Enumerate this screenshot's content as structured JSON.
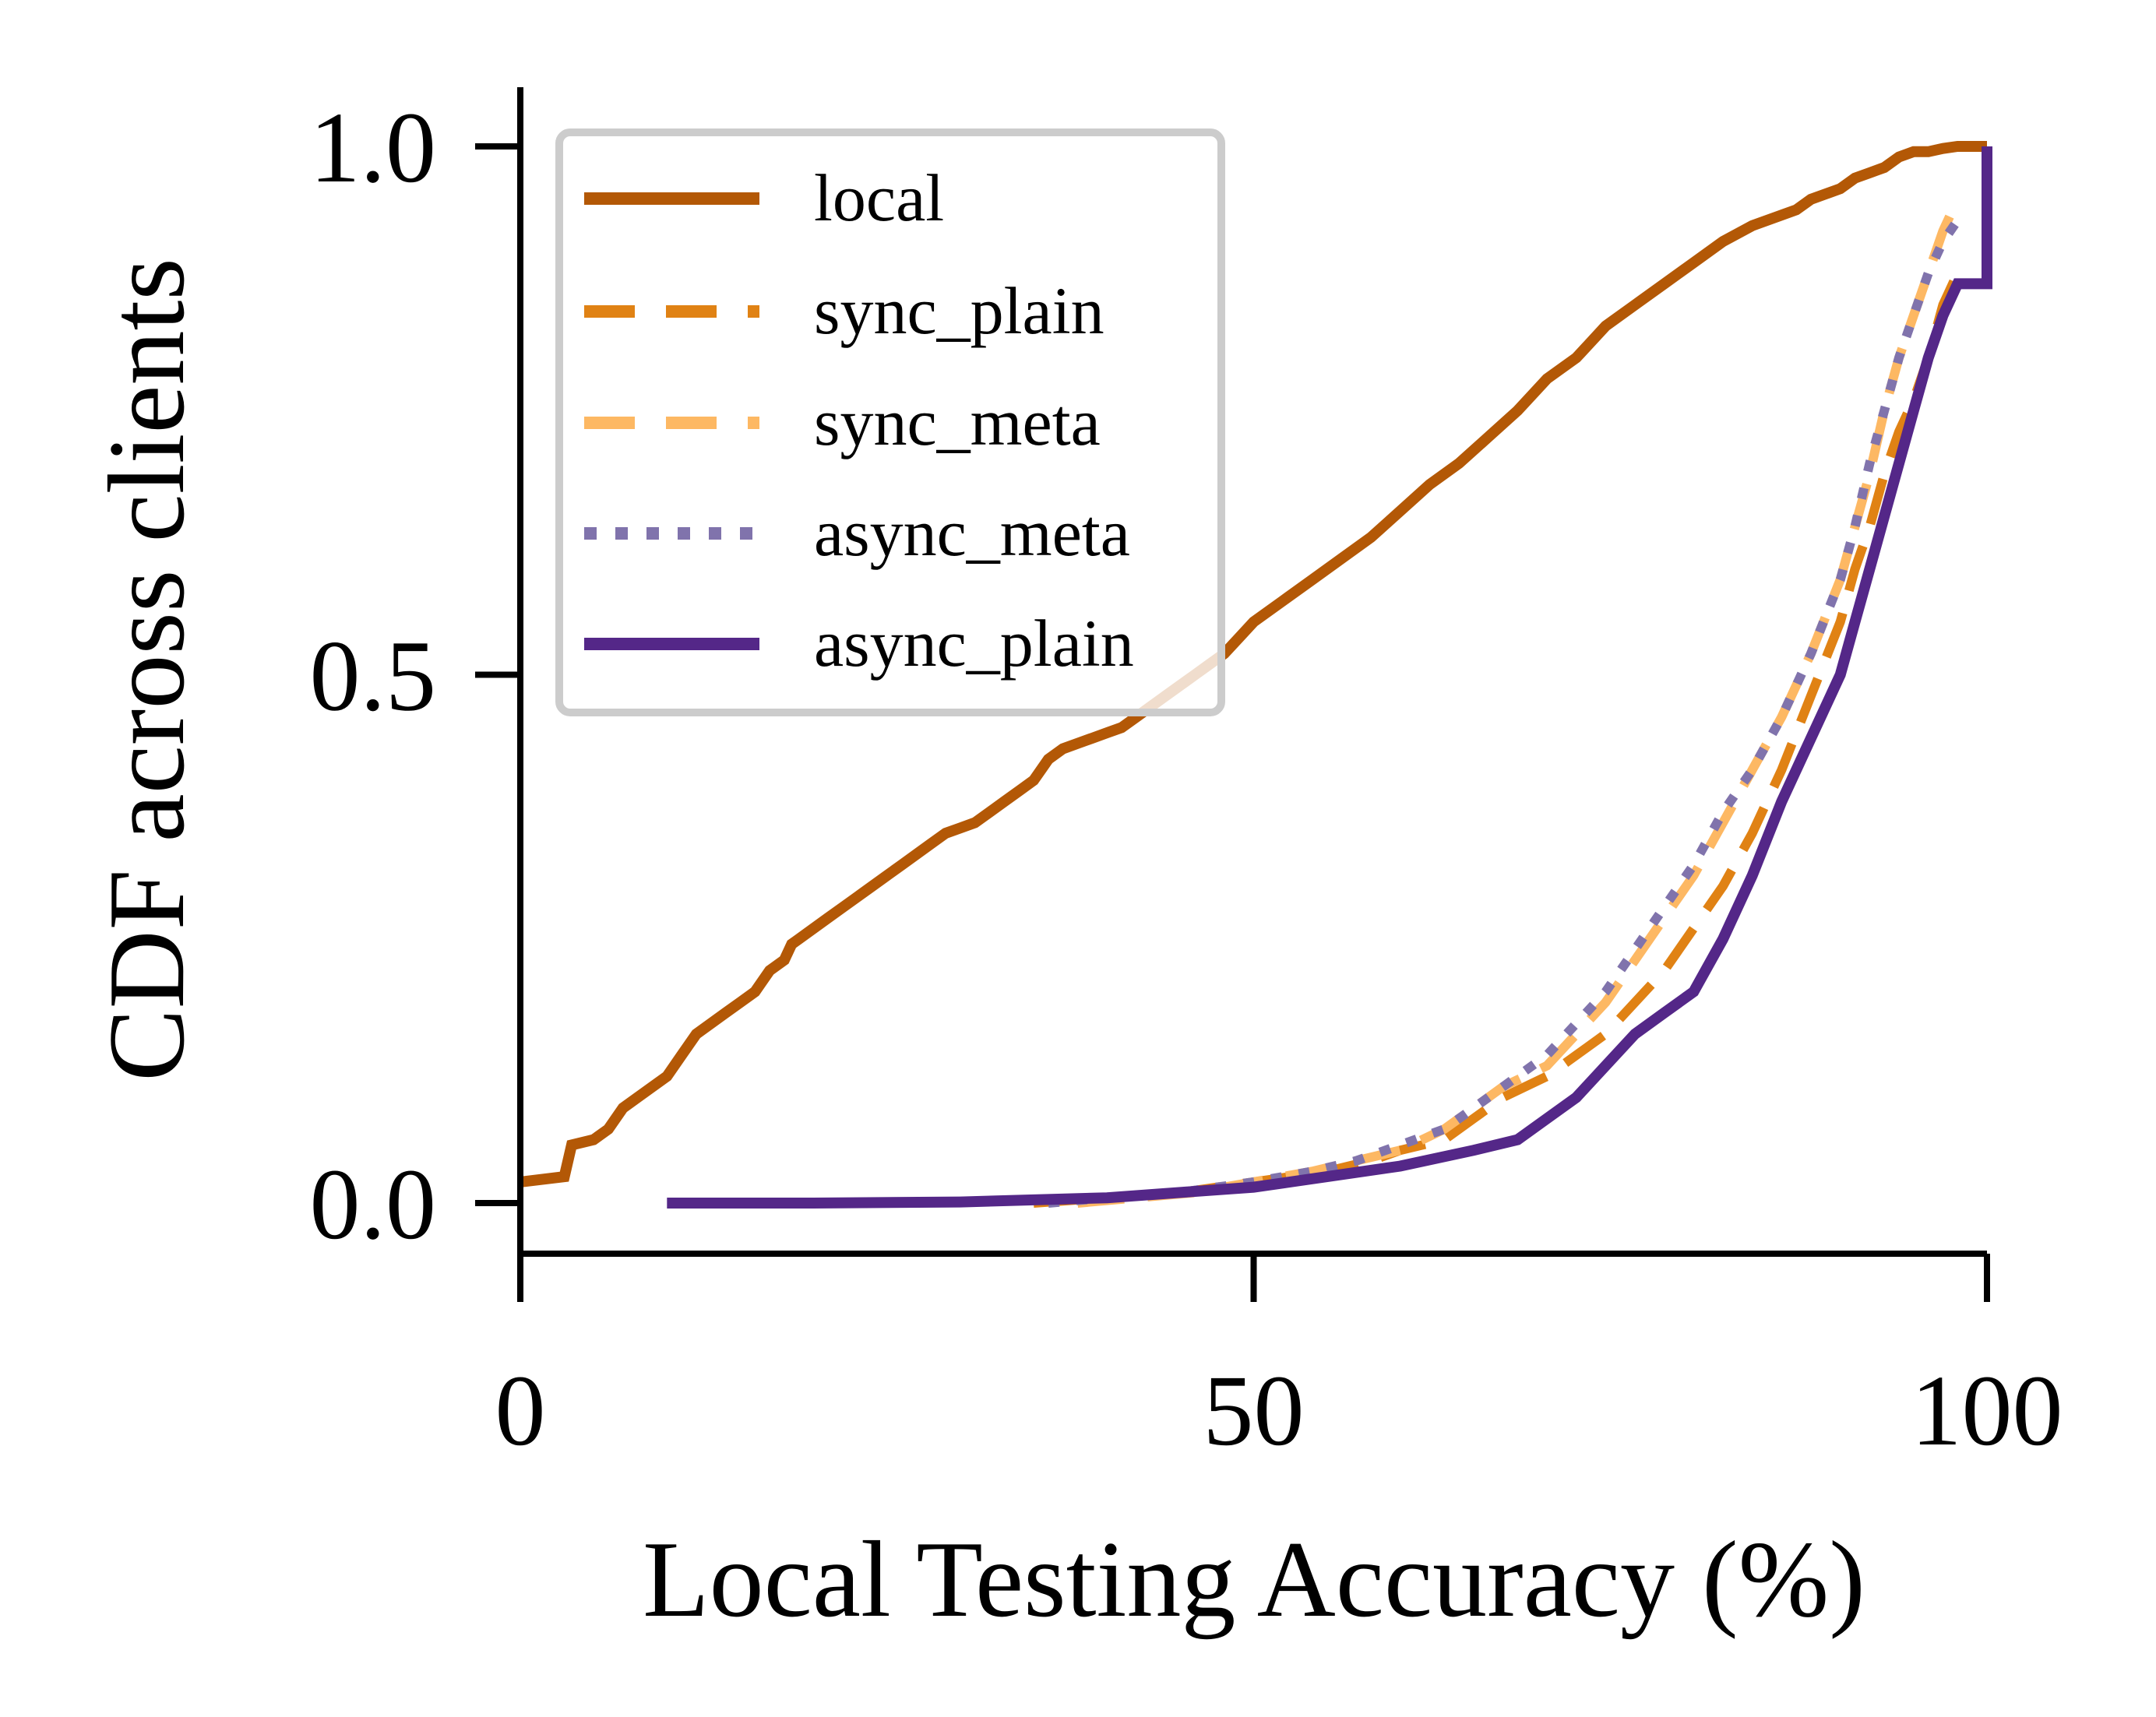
{
  "chart_data": {
    "type": "line",
    "title": "",
    "xlabel": "Local Testing Accuracy (%)",
    "ylabel": "CDF across clients",
    "xlim": [
      0,
      100
    ],
    "ylim": [
      -0.05,
      1.05
    ],
    "x_ticks": [
      0,
      50,
      100
    ],
    "x_tick_labels": [
      "0",
      "50",
      "100"
    ],
    "y_ticks": [
      0.0,
      0.5,
      1.0
    ],
    "y_tick_labels": [
      "0.0",
      "0.5",
      "1.0"
    ],
    "grid": false,
    "legend_position": "top-left",
    "series": [
      {
        "name": "local",
        "color": "#b35806",
        "style": "solid",
        "x": [
          0,
          3,
          3.5,
          5,
          6,
          7,
          8,
          9,
          10,
          11,
          11.5,
          12,
          14,
          15,
          16,
          17,
          18,
          18.5,
          19,
          20,
          21,
          22,
          23,
          24,
          25,
          26,
          27,
          28,
          29,
          30,
          31,
          32,
          33,
          34,
          35,
          35.5,
          36,
          37,
          38,
          39,
          40,
          41,
          42,
          43,
          44,
          45,
          46,
          47,
          48,
          49,
          50,
          52,
          54,
          56,
          58,
          60,
          62,
          64,
          66,
          68,
          70,
          72,
          74,
          76,
          78,
          80,
          82,
          84,
          86,
          87,
          88,
          89,
          90,
          91,
          92,
          93,
          94,
          95,
          96,
          97,
          98,
          99,
          100
        ],
        "y": [
          0.02,
          0.025,
          0.055,
          0.06,
          0.07,
          0.09,
          0.1,
          0.11,
          0.12,
          0.14,
          0.15,
          0.16,
          0.18,
          0.19,
          0.2,
          0.22,
          0.23,
          0.245,
          0.25,
          0.26,
          0.27,
          0.28,
          0.29,
          0.3,
          0.31,
          0.32,
          0.33,
          0.34,
          0.35,
          0.355,
          0.36,
          0.37,
          0.38,
          0.39,
          0.4,
          0.41,
          0.42,
          0.43,
          0.435,
          0.44,
          0.445,
          0.45,
          0.46,
          0.47,
          0.48,
          0.49,
          0.5,
          0.51,
          0.52,
          0.535,
          0.55,
          0.57,
          0.59,
          0.61,
          0.63,
          0.655,
          0.68,
          0.7,
          0.725,
          0.75,
          0.78,
          0.8,
          0.83,
          0.85,
          0.87,
          0.89,
          0.91,
          0.925,
          0.935,
          0.94,
          0.95,
          0.955,
          0.96,
          0.97,
          0.975,
          0.98,
          0.99,
          0.995,
          0.995,
          0.998,
          1.0,
          1.0,
          1.0
        ]
      },
      {
        "name": "sync_plain",
        "color": "#e08214",
        "style": "dashed",
        "x": [
          35,
          40,
          45,
          50,
          55,
          58,
          60,
          63,
          65,
          67,
          70,
          72,
          74,
          76,
          78,
          80,
          82,
          84,
          86,
          88,
          90,
          91,
          92,
          93,
          94,
          95,
          96,
          97,
          98
        ],
        "y": [
          0.0,
          0.005,
          0.01,
          0.02,
          0.03,
          0.04,
          0.05,
          0.06,
          0.08,
          0.1,
          0.12,
          0.14,
          0.16,
          0.19,
          0.22,
          0.26,
          0.3,
          0.35,
          0.41,
          0.48,
          0.55,
          0.6,
          0.64,
          0.69,
          0.73,
          0.76,
          0.8,
          0.85,
          0.88
        ]
      },
      {
        "name": "sync_meta",
        "color": "#fdb863",
        "style": "dashed",
        "x": [
          38,
          42,
          46,
          50,
          54,
          57,
          60,
          63,
          65,
          67,
          70,
          72,
          74,
          76,
          78,
          80,
          82,
          84,
          86,
          88,
          90,
          91,
          92,
          93,
          94,
          95,
          96,
          97,
          98
        ],
        "y": [
          0.0,
          0.005,
          0.01,
          0.02,
          0.03,
          0.04,
          0.05,
          0.07,
          0.09,
          0.11,
          0.13,
          0.16,
          0.19,
          0.23,
          0.27,
          0.31,
          0.36,
          0.41,
          0.46,
          0.52,
          0.59,
          0.64,
          0.69,
          0.75,
          0.8,
          0.84,
          0.88,
          0.92,
          0.95
        ]
      },
      {
        "name": "async_meta",
        "color": "#8073ac",
        "style": "dotted",
        "x": [
          36,
          40,
          45,
          50,
          54,
          57,
          60,
          63,
          65,
          67,
          70,
          72,
          74,
          76,
          78,
          80,
          82,
          84,
          86,
          88,
          90,
          91,
          92,
          93,
          94,
          95,
          96,
          97,
          98
        ],
        "y": [
          0.0,
          0.005,
          0.01,
          0.02,
          0.03,
          0.04,
          0.055,
          0.07,
          0.09,
          0.11,
          0.14,
          0.17,
          0.2,
          0.24,
          0.28,
          0.32,
          0.37,
          0.41,
          0.46,
          0.52,
          0.59,
          0.64,
          0.7,
          0.75,
          0.8,
          0.84,
          0.88,
          0.91,
          0.93
        ]
      },
      {
        "name": "async_plain",
        "color": "#542788",
        "style": "solid",
        "x": [
          10,
          20,
          30,
          40,
          45,
          50,
          55,
          60,
          65,
          68,
          70,
          72,
          74,
          76,
          78,
          80,
          82,
          84,
          86,
          88,
          90,
          91,
          92,
          93,
          94,
          95,
          96,
          97,
          98,
          99.2,
          99.2,
          100,
          100
        ],
        "y": [
          0.0,
          0.0,
          0.001,
          0.005,
          0.01,
          0.015,
          0.025,
          0.035,
          0.05,
          0.06,
          0.08,
          0.1,
          0.13,
          0.16,
          0.18,
          0.2,
          0.25,
          0.31,
          0.38,
          0.44,
          0.5,
          0.55,
          0.6,
          0.65,
          0.7,
          0.75,
          0.8,
          0.84,
          0.87,
          0.87,
          0.87,
          0.87,
          1.0
        ]
      }
    ]
  }
}
